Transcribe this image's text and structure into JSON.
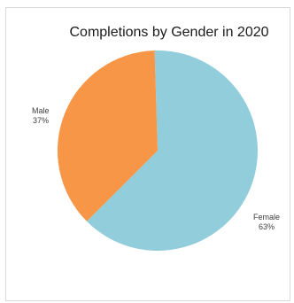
{
  "chart_data": {
    "type": "pie",
    "title": "Completions by Gender in 2020",
    "slices": [
      {
        "label": "Female",
        "value": 63,
        "display": "63%",
        "color": "#92cddc"
      },
      {
        "label": "Male",
        "value": 37,
        "display": "37%",
        "color": "#f79646"
      }
    ],
    "legend": "none",
    "data_labels": "category name and percentage"
  }
}
